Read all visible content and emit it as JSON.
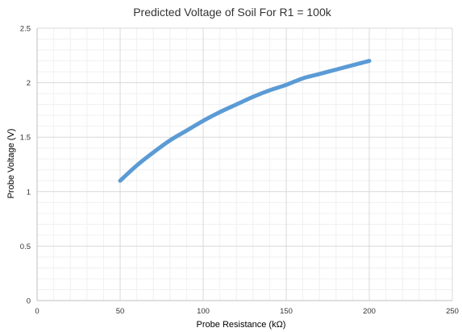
{
  "chart_data": {
    "type": "line",
    "title": "Predicted Voltage of Soil For R1 = 100k",
    "xlabel": "Probe Resistance (kΩ)",
    "ylabel": "Probe Voltage (V)",
    "xlim": [
      0,
      250
    ],
    "ylim": [
      0,
      2.5
    ],
    "x_ticks": [
      0,
      50,
      100,
      150,
      200,
      250
    ],
    "y_ticks": [
      0,
      0.5,
      1,
      1.5,
      2,
      2.5
    ],
    "x_tick_labels": [
      "0",
      "50",
      "100",
      "150",
      "200",
      "250"
    ],
    "y_tick_labels": [
      "0",
      "0.5",
      "1",
      "1.5",
      "2",
      "2.5"
    ],
    "grid": true,
    "legend": "none",
    "series": [
      {
        "color": "#5b9bd5",
        "x": [
          50,
          60,
          70,
          80,
          90,
          100,
          110,
          120,
          130,
          140,
          150,
          160,
          170,
          180,
          190,
          200
        ],
        "y": [
          1.1,
          1.24,
          1.36,
          1.47,
          1.56,
          1.65,
          1.73,
          1.8,
          1.87,
          1.93,
          1.98,
          2.04,
          2.08,
          2.12,
          2.16,
          2.2
        ]
      }
    ]
  }
}
